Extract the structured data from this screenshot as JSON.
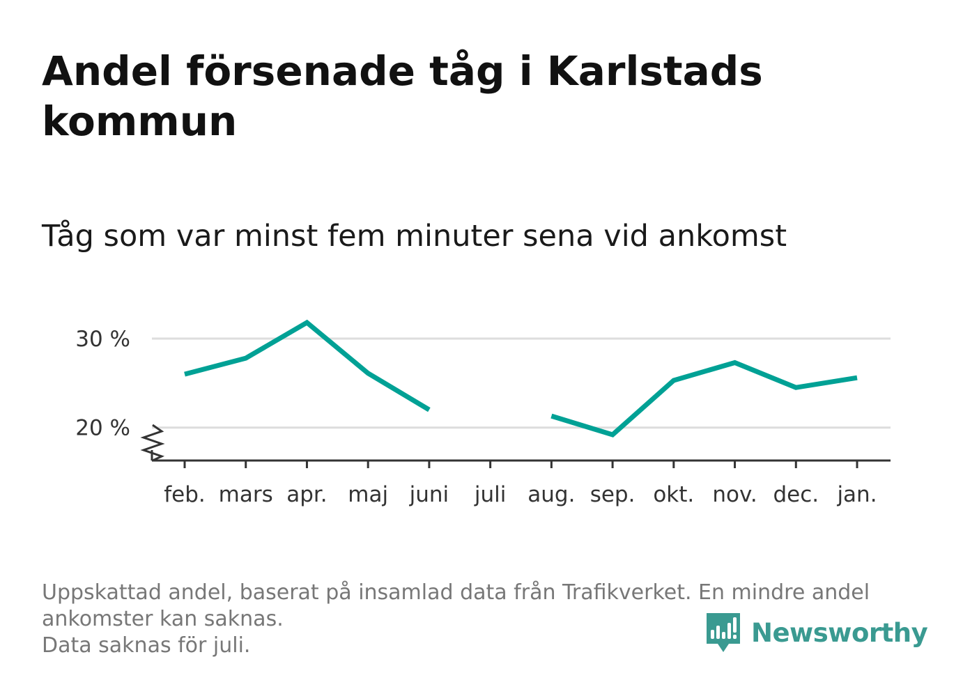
{
  "title": "Andel försenade tåg i Karlstads kommun",
  "subtitle": "Tåg som var minst fem minuter sena vid ankomst",
  "footnote": {
    "line1": "Uppskattad andel, baserat på insamlad data från Trafikverket. En mindre andel",
    "line2": "ankomster kan saknas.",
    "line3": "Data saknas för juli."
  },
  "brand": {
    "name": "Newsworthy",
    "icon": "newsworthy-logo-icon"
  },
  "colors": {
    "line": "#00a195",
    "grid": "#dddddd",
    "axis": "#333333",
    "brand": "#3a9a91"
  },
  "chart_data": {
    "type": "line",
    "categories": [
      "feb.",
      "mars",
      "apr.",
      "maj",
      "juni",
      "juli",
      "aug.",
      "sep.",
      "okt.",
      "nov.",
      "dec.",
      "jan."
    ],
    "series": [
      {
        "values": [
          26.0,
          27.8,
          31.8,
          26.1,
          22.0,
          null,
          21.3,
          19.2,
          25.3,
          27.3,
          24.5,
          25.6
        ]
      }
    ],
    "ytick_labels": [
      "20 %",
      "30 %"
    ],
    "ytick_values": [
      20,
      30
    ],
    "ylim": [
      16.3,
      33.6
    ],
    "axis_break": true,
    "grid": true,
    "xlabel": "",
    "ylabel": ""
  }
}
